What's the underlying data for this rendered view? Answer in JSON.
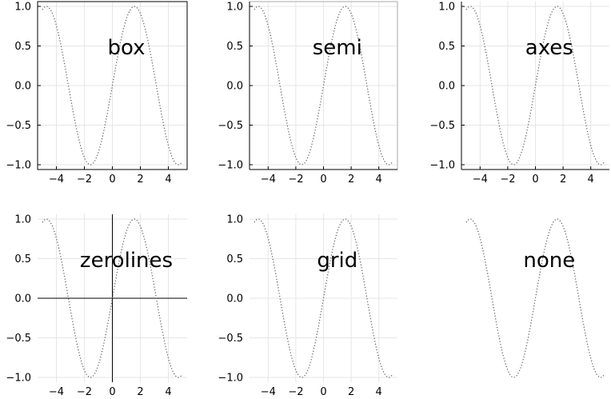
{
  "chart_data": [
    {
      "type": "line",
      "title": "box",
      "framestyle": "box",
      "grid": true,
      "xlim": [
        -5,
        5
      ],
      "ylim": [
        -1,
        1
      ],
      "xticks": [
        "−4",
        "−2",
        "0",
        "2",
        "4"
      ],
      "yticks": [
        "1.0",
        "0.5",
        "0.0",
        "−0.5",
        "−1.0"
      ],
      "series": [
        {
          "function": "sin(x)",
          "x_range": [
            -5,
            5
          ],
          "style": "dotted",
          "color": "#555555"
        }
      ]
    },
    {
      "type": "line",
      "title": "semi",
      "framestyle": "semi",
      "grid": true,
      "xlim": [
        -5,
        5
      ],
      "ylim": [
        -1,
        1
      ],
      "xticks": [
        "−4",
        "−2",
        "0",
        "2",
        "4"
      ],
      "yticks": [
        "1.0",
        "0.5",
        "0.0",
        "−0.5",
        "−1.0"
      ],
      "series": [
        {
          "function": "sin(x)",
          "x_range": [
            -5,
            5
          ],
          "style": "dotted",
          "color": "#555555"
        }
      ]
    },
    {
      "type": "line",
      "title": "axes",
      "framestyle": "axes",
      "grid": true,
      "xlim": [
        -5,
        5
      ],
      "ylim": [
        -1,
        1
      ],
      "xticks": [
        "−4",
        "−2",
        "0",
        "2",
        "4"
      ],
      "yticks": [
        "1.0",
        "0.5",
        "0.0",
        "−0.5",
        "−1.0"
      ],
      "series": [
        {
          "function": "sin(x)",
          "x_range": [
            -5,
            5
          ],
          "style": "dotted",
          "color": "#555555"
        }
      ]
    },
    {
      "type": "line",
      "title": "zerolines",
      "framestyle": "zerolines",
      "grid": true,
      "xlim": [
        -5,
        5
      ],
      "ylim": [
        -1,
        1
      ],
      "xticks": [
        "−4",
        "−2",
        "0",
        "2",
        "4"
      ],
      "yticks": [
        "1.0",
        "0.5",
        "0.0",
        "−0.5",
        "−1.0"
      ],
      "series": [
        {
          "function": "sin(x)",
          "x_range": [
            -5,
            5
          ],
          "style": "dotted",
          "color": "#555555"
        }
      ]
    },
    {
      "type": "line",
      "title": "grid",
      "framestyle": "grid",
      "grid": true,
      "xlim": [
        -5,
        5
      ],
      "ylim": [
        -1,
        1
      ],
      "xticks": [
        "−4",
        "−2",
        "0",
        "2",
        "4"
      ],
      "yticks": [
        "1.0",
        "0.5",
        "0.0",
        "−0.5",
        "−1.0"
      ],
      "series": [
        {
          "function": "sin(x)",
          "x_range": [
            -5,
            5
          ],
          "style": "dotted",
          "color": "#555555"
        }
      ]
    },
    {
      "type": "line",
      "title": "none",
      "framestyle": "none",
      "grid": false,
      "xlim": [
        -5,
        5
      ],
      "ylim": [
        -1,
        1
      ],
      "xticks": [],
      "yticks": [],
      "series": [
        {
          "function": "sin(x)",
          "x_range": [
            -5,
            5
          ],
          "style": "dotted",
          "color": "#555555"
        }
      ]
    }
  ]
}
